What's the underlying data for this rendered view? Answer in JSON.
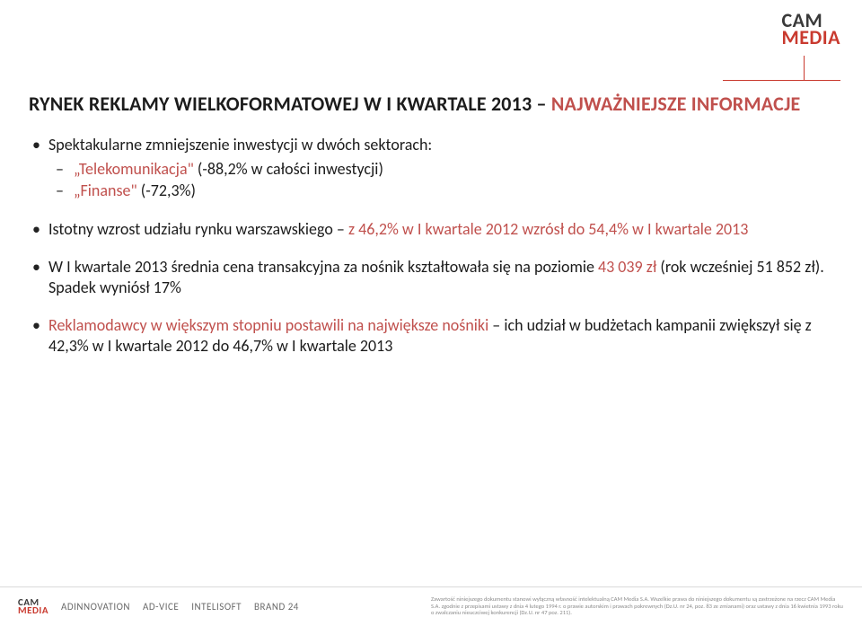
{
  "colors": {
    "accent_red": "#c0504d",
    "logo_red": "#c93a2f",
    "text_black": "#1c1c1c",
    "footer_gray": "#6b6b6b",
    "background": "#ffffff"
  },
  "logo": {
    "line1": "CAM",
    "line2": "MEDIA"
  },
  "title": {
    "part1_black": "RYNEK REKLAMY WIELKOFORMATOWEJ W I KWARTALE 2013 – ",
    "part2_red": "NAJWAŻNIEJSZE INFORMACJE"
  },
  "bullets": [
    {
      "lead_black": "Spektakularne zmniejszenie inwestycji ",
      "tail_black": "w dwóch sektorach:",
      "sub": [
        {
          "red": "„Telekomunikacja\" ",
          "black": "(-88,2% w całości inwestycji)"
        },
        {
          "red": "„Finanse\" ",
          "black": "(-72,3%)"
        }
      ]
    },
    {
      "line": [
        {
          "black": "Istotny wzrost udziału rynku warszawskiego – "
        },
        {
          "red": "z 46,2% w I kwartale 2012 wzrósł do 54,4% w I kwartale 2013"
        }
      ]
    },
    {
      "line": [
        {
          "black": "W I kwartale 2013 średnia cena transakcyjna za nośnik kształtowała się na poziomie  "
        },
        {
          "red": "43 039 zł "
        },
        {
          "black": "(rok wcześniej 51 852 zł). Spadek wyniósł 17%"
        }
      ]
    },
    {
      "line": [
        {
          "red": "Reklamodawcy w większym stopniu postawili na największe nośniki "
        },
        {
          "black": "– ich udział w budżetach kampanii zwiększył się z 42,3% w I kwartale 2012 do 46,7% w I kwartale 2013"
        }
      ]
    }
  ],
  "footer": {
    "brands": [
      "ADINNOVATION",
      "AD-VICE",
      "INTELISOFT",
      "BRAND 24"
    ],
    "legal": "Zawartość niniejszego dokumentu stanowi wyłączną własność intelektualną CAM Media S.A. Wszelkie prawa do niniejszego dokumentu są zastrzeżone na rzecz CAM Media S.A. zgodnie z przepisami ustawy z dnia 4 lutego 1994 r. o prawie autorskim i prawach pokrewnych (Dz.U. nr 24, poz. 83 ze zmianami) oraz ustawy z dnia 16 kwietnia 1993 roku o zwalczaniu nieuczciwej konkurencji (Dz.U. nr 47 poz. 211)."
  }
}
